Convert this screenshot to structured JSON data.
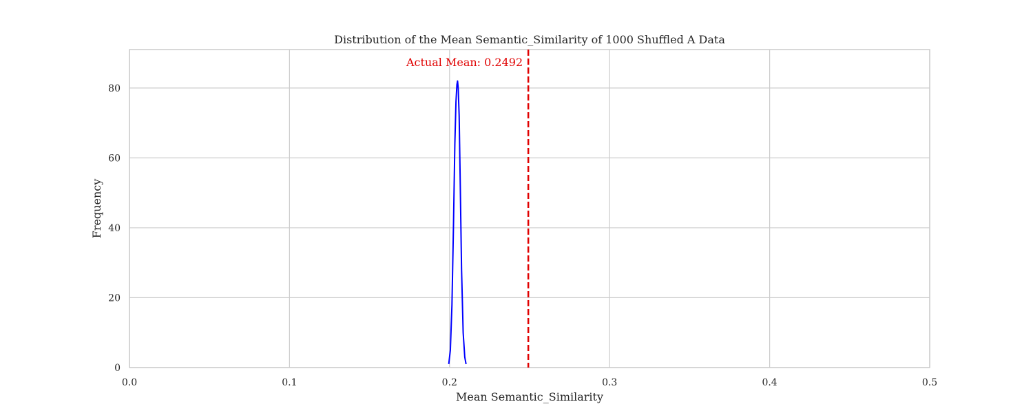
{
  "chart_data": {
    "type": "line",
    "title": "Distribution of the Mean Semantic_Similarity of 1000 Shuffled A Data",
    "xlabel": "Mean Semantic_Similarity",
    "ylabel": "Frequency",
    "xlim": [
      0.0,
      0.5
    ],
    "ylim": [
      0,
      91
    ],
    "xticks": [
      0.0,
      0.1,
      0.2,
      0.3,
      0.4,
      0.5
    ],
    "xtick_labels": [
      "0.0",
      "0.1",
      "0.2",
      "0.3",
      "0.4",
      "0.5"
    ],
    "yticks": [
      0,
      20,
      40,
      60,
      80
    ],
    "ytick_labels": [
      "0",
      "20",
      "40",
      "60",
      "80"
    ],
    "grid": true,
    "series": [
      {
        "color": "#0000ff",
        "x": [
          0.1995,
          0.2005,
          0.2015,
          0.2025,
          0.2033,
          0.204,
          0.2046,
          0.205,
          0.2054,
          0.206,
          0.2067,
          0.2075,
          0.2085,
          0.2095,
          0.2103
        ],
        "y": [
          1,
          5,
          18,
          42,
          64,
          76,
          81,
          82,
          80,
          72,
          52,
          28,
          10,
          3,
          1
        ]
      }
    ],
    "reference_line": {
      "x": 0.2492,
      "color": "#e00000",
      "style": "dashed",
      "label": "Actual Mean: 0.2492"
    }
  }
}
